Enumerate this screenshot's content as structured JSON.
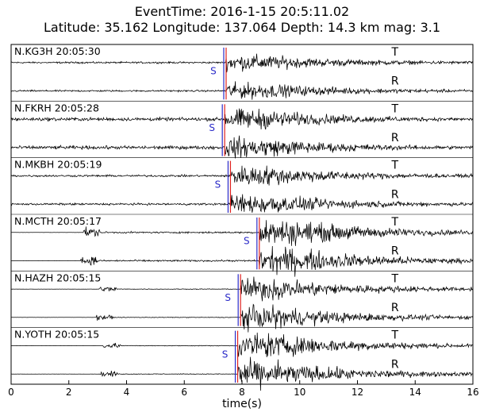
{
  "header": {
    "event_line": "EventTime: 2016-1-15 20:5:11.02",
    "location_line": "Latitude: 35.162 Longitude: 137.064 Depth: 14.3 km mag: 3.1"
  },
  "chart_data": {
    "type": "line",
    "xlabel": "time(s)",
    "xlim": [
      0,
      16
    ],
    "xticks": [
      0,
      2,
      4,
      6,
      8,
      10,
      12,
      14,
      16
    ],
    "component_labels": [
      "T",
      "R"
    ],
    "phase_label": "S",
    "colors": {
      "trace": "#000000",
      "pick_red": "#e0221f",
      "pick_blue": "#2b2bc8",
      "phase_text": "#2b2bc8"
    },
    "stations": [
      {
        "label": "N.KG3H 20:05:30",
        "s_pick": 7.45,
        "onset": 0.0,
        "noise": 0.05,
        "amp": 0.42
      },
      {
        "label": "N.FKRH 20:05:28",
        "s_pick": 7.4,
        "onset": 0.0,
        "noise": 0.1,
        "amp": 0.55
      },
      {
        "label": "N.MKBH 20:05:19",
        "s_pick": 7.6,
        "onset": 0.0,
        "noise": 0.06,
        "amp": 0.55
      },
      {
        "label": "N.MCTH 20:05:17",
        "s_pick": 8.6,
        "onset": 2.45,
        "noise": 0.05,
        "amp": 0.7
      },
      {
        "label": "N.HAZH 20:05:15",
        "s_pick": 7.95,
        "onset": 3.0,
        "noise": 0.02,
        "amp": 0.6
      },
      {
        "label": "N.YOTH 20:05:15",
        "s_pick": 7.85,
        "onset": 3.15,
        "noise": 0.02,
        "amp": 0.7
      }
    ]
  }
}
